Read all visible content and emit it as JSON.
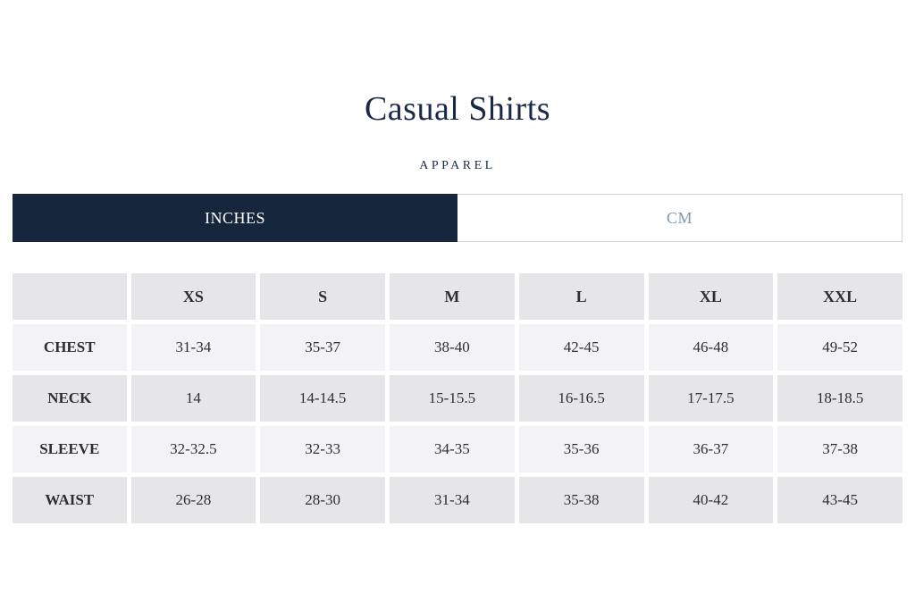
{
  "page": {
    "title": "Casual Shirts",
    "subtitle": "APPAREL"
  },
  "tabs": [
    {
      "label": "INCHES",
      "active": true
    },
    {
      "label": "CM",
      "active": false
    }
  ],
  "colors": {
    "accent_navy": "#15263d",
    "title_text": "#1b2949",
    "inactive_tab_text": "#8296ac",
    "inactive_tab_border": "#ccd6e0",
    "row_light": "#f3f3f5",
    "row_dark": "#e6e6e8",
    "cell_text": "#2f2f2f"
  },
  "size_table": {
    "columns": [
      "",
      "XS",
      "S",
      "M",
      "L",
      "XL",
      "XXL"
    ],
    "rows": [
      {
        "label": "CHEST",
        "values": [
          "31-34",
          "35-37",
          "38-40",
          "42-45",
          "46-48",
          "49-52"
        ]
      },
      {
        "label": "NECK",
        "values": [
          "14",
          "14-14.5",
          "15-15.5",
          "16-16.5",
          "17-17.5",
          "18-18.5"
        ]
      },
      {
        "label": "SLEEVE",
        "values": [
          "32-32.5",
          "32-33",
          "34-35",
          "35-36",
          "36-37",
          "37-38"
        ]
      },
      {
        "label": "WAIST",
        "values": [
          "26-28",
          "28-30",
          "31-34",
          "35-38",
          "40-42",
          "43-45"
        ]
      }
    ]
  }
}
